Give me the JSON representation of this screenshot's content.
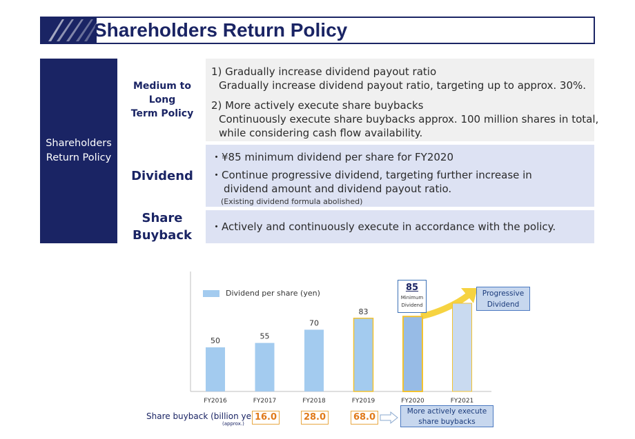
{
  "title": "Shareholders Return Policy",
  "sidebar_label": [
    "Shareholders",
    "Return Policy"
  ],
  "rows": {
    "medium_long": {
      "label": [
        "Medium to Long",
        "Term Policy"
      ],
      "lines": [
        "1) Gradually increase dividend payout ratio",
        "Gradually increase dividend payout ratio, targeting up to approx. 30%.",
        "2) More actively execute share buybacks",
        "Continuously execute share buybacks approx. 100 million shares in total,",
        "while considering cash flow availability."
      ]
    },
    "dividend": {
      "label": "Dividend",
      "lines": [
        "・¥85 minimum dividend per share for FY2020",
        "・Continue progressive dividend, targeting further increase in",
        "dividend amount and dividend payout ratio.",
        "(Existing dividend formula abolished)"
      ]
    },
    "share_buyback": {
      "label": [
        "Share",
        "Buyback"
      ],
      "lines": [
        "・Actively and continuously execute in accordance with the policy."
      ]
    }
  },
  "chart_data": {
    "type": "bar",
    "categories": [
      "FY2016",
      "FY2017",
      "FY2018",
      "FY2019",
      "FY2020",
      "FY2021"
    ],
    "values": [
      50,
      55,
      70,
      83,
      85,
      null
    ],
    "data_labels": [
      "50",
      "55",
      "70",
      "83",
      "",
      ""
    ],
    "legend": "Dividend per share (yen)",
    "ylim": [
      0,
      100
    ],
    "colors": {
      "bar": "#a3cbef",
      "highlight_border": "#f2c230",
      "fy2020_fill": "#97bbe6",
      "fy2021_fill": "#c9daf0",
      "arrow": "#f6d341"
    },
    "annotations": {
      "minimum_value": "85",
      "minimum_label": [
        "Minimum",
        "Dividend"
      ],
      "progressive": [
        "Progressive",
        "Dividend"
      ]
    }
  },
  "buyback": {
    "label": "Share buyback (billion yen)",
    "approx": "(approx.)",
    "values": [
      "16.0",
      "28.0",
      "68.0"
    ],
    "more": [
      "More actively execute",
      "share buybacks"
    ]
  }
}
